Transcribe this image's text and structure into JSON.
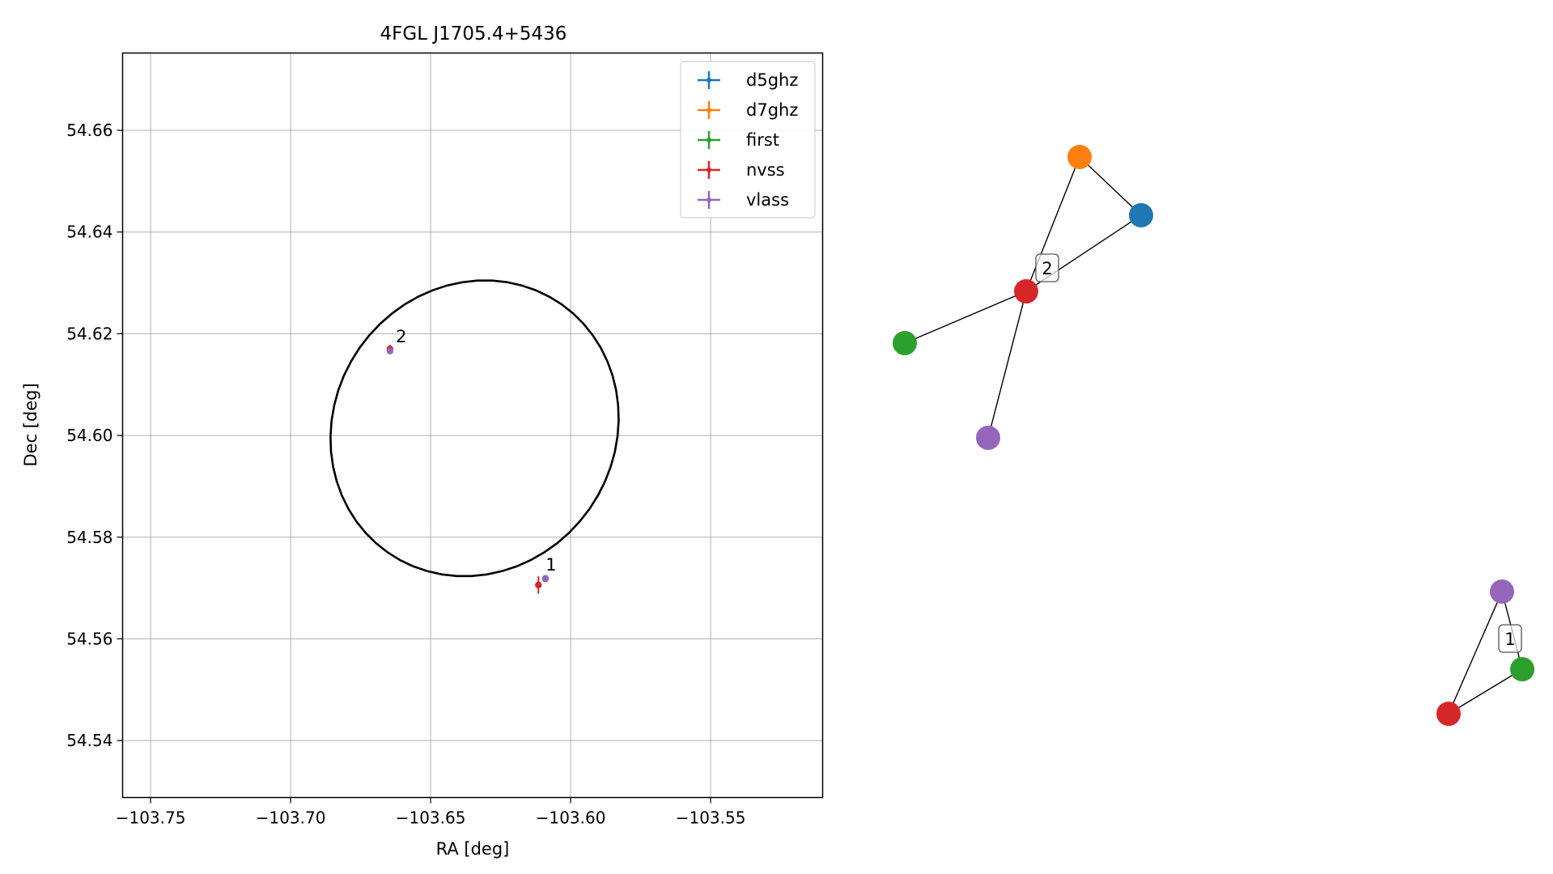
{
  "colors": {
    "d5ghz": "#1f77b4",
    "d7ghz": "#ff7f0e",
    "first": "#2ca02c",
    "nvss": "#d62728",
    "vlass": "#9467bd"
  },
  "chart_data": [
    {
      "type": "scatter",
      "title": "4FGL J1705.4+5436",
      "xlabel": "RA [deg]",
      "ylabel": "Dec [deg]",
      "xlim": [
        -103.76,
        -103.51
      ],
      "ylim": [
        54.5288,
        54.6752
      ],
      "xticks": [
        -103.75,
        -103.7,
        -103.65,
        -103.6,
        -103.55
      ],
      "xtick_labels": [
        "−103.75",
        "−103.70",
        "−103.65",
        "−103.60",
        "−103.55"
      ],
      "yticks": [
        54.54,
        54.56,
        54.58,
        54.6,
        54.62,
        54.64,
        54.66
      ],
      "ytick_labels": [
        "54.54",
        "54.56",
        "54.58",
        "54.60",
        "54.62",
        "54.64",
        "54.66"
      ],
      "grid": true,
      "legend": {
        "location": "upper right",
        "entries": [
          "d5ghz",
          "d7ghz",
          "first",
          "nvss",
          "vlass"
        ]
      },
      "ellipse": {
        "center_ra": -103.6343,
        "center_dec": 54.6014,
        "semi_axis_ra": 0.0541,
        "semi_axis_dec": 0.0276,
        "rotation_deg": 55.0
      },
      "series": [
        {
          "name": "nvss",
          "x": [
            -103.6645,
            -103.6115
          ],
          "y": [
            54.617,
            54.5706
          ],
          "yerr": [
            0.0008,
            0.0017
          ]
        },
        {
          "name": "first",
          "x": [
            -103.609
          ],
          "y": [
            54.5718
          ],
          "yerr": [
            0.0004
          ]
        },
        {
          "name": "vlass",
          "x": [
            -103.6645,
            -103.609
          ],
          "y": [
            54.6166,
            54.5719
          ],
          "yerr": [
            0.0004,
            0.0003
          ]
        }
      ],
      "annotations": [
        {
          "text": "1",
          "x": -103.6095,
          "y": 54.5731
        },
        {
          "text": "2",
          "x": -103.663,
          "y": 54.618
        }
      ]
    },
    {
      "type": "network",
      "groups": [
        {
          "label": "2",
          "nodes": [
            {
              "name": "d7ghz"
            },
            {
              "name": "d5ghz"
            },
            {
              "name": "nvss"
            },
            {
              "name": "first"
            },
            {
              "name": "vlass"
            }
          ],
          "edges": [
            [
              "d7ghz",
              "d5ghz"
            ],
            [
              "d7ghz",
              "nvss"
            ],
            [
              "d5ghz",
              "nvss"
            ],
            [
              "nvss",
              "first"
            ],
            [
              "nvss",
              "vlass"
            ]
          ]
        },
        {
          "label": "1",
          "nodes": [
            {
              "name": "vlass"
            },
            {
              "name": "first"
            },
            {
              "name": "nvss"
            }
          ],
          "edges": [
            [
              "vlass",
              "first"
            ],
            [
              "vlass",
              "nvss"
            ],
            [
              "first",
              "nvss"
            ]
          ]
        }
      ]
    }
  ]
}
